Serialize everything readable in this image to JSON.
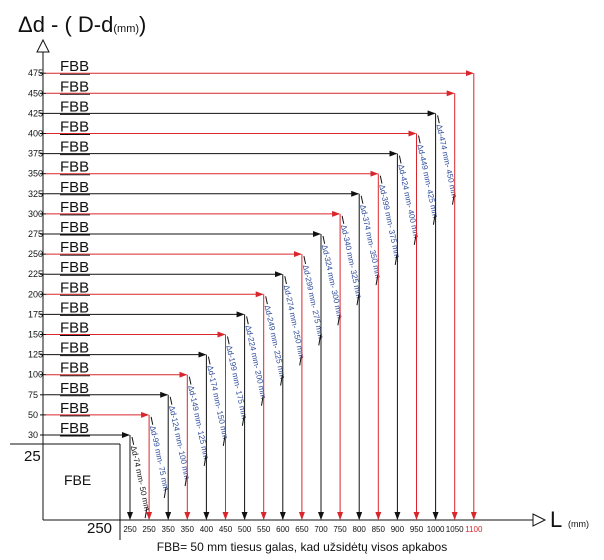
{
  "title": {
    "main": "Δd - ( D-d",
    "unit": "(mm)",
    "close": ")"
  },
  "x_axis": {
    "label": "L",
    "unit": "(mm)"
  },
  "corner": {
    "y_value": "25",
    "x_value": "250",
    "box_label": "FBE"
  },
  "fbb_label": "FBB",
  "footnote": "FBB= 50 mm tiesus galas, kad užsidėtų visos apkabos",
  "colors": {
    "black_line": "#111111",
    "red_line": "#d9262c",
    "blue_text": "#2b4a9b",
    "red_text": "#d9262c"
  },
  "rows": [
    {
      "y": "30",
      "x": "250",
      "color": "black",
      "annotation": "Δd-74 mm- 50 mm",
      "annotation_color": "black"
    },
    {
      "y": "50",
      "x": "250",
      "color": "red",
      "annotation": "Δd-99 mm- 75 mm",
      "annotation_color": "blue"
    },
    {
      "y": "75",
      "x": "350",
      "color": "black",
      "annotation": "Δd-124 mm- 100 mm",
      "annotation_color": "blue"
    },
    {
      "y": "100",
      "x": "350",
      "color": "red",
      "annotation": "Δd-149 mm- 125 mm",
      "annotation_color": "blue"
    },
    {
      "y": "125",
      "x": "400",
      "color": "black",
      "annotation": "Δd-174 mm- 150 mm",
      "annotation_color": "blue"
    },
    {
      "y": "150",
      "x": "450",
      "color": "red",
      "annotation": "Δd-199 mm- 175 mm",
      "annotation_color": "blue"
    },
    {
      "y": "175",
      "x": "500",
      "color": "black",
      "annotation": "Δd-224 mm- 200 mm",
      "annotation_color": "blue"
    },
    {
      "y": "200",
      "x": "550",
      "color": "red",
      "annotation": "Δd-249 mm- 225 mm",
      "annotation_color": "blue"
    },
    {
      "y": "225",
      "x": "600",
      "color": "black",
      "annotation": "Δd-274 mm- 250 mm",
      "annotation_color": "blue"
    },
    {
      "y": "250",
      "x": "650",
      "color": "red",
      "annotation": "Δd-299 mm- 275 mm",
      "annotation_color": "blue"
    },
    {
      "y": "275",
      "x": "700",
      "color": "black",
      "annotation": "Δd-324 mm- 300 mm",
      "annotation_color": "blue"
    },
    {
      "y": "300",
      "x": "750",
      "color": "red",
      "annotation": "Δd-340 mm- 325 mm",
      "annotation_color": "blue"
    },
    {
      "y": "325",
      "x": "800",
      "color": "black",
      "annotation": "Δd-374 mm- 350 mm",
      "annotation_color": "blue"
    },
    {
      "y": "350",
      "x": "850",
      "color": "red",
      "annotation": "Δd-399 mm- 375 mm",
      "annotation_color": "blue"
    },
    {
      "y": "375",
      "x": "900",
      "color": "black",
      "annotation": "Δd-424 mm- 400 mm",
      "annotation_color": "blue"
    },
    {
      "y": "400",
      "x": "950",
      "color": "red",
      "annotation": "Δd-449 mm- 425 mm",
      "annotation_color": "blue"
    },
    {
      "y": "425",
      "x": "1000",
      "color": "black",
      "annotation": "Δd-474 mm- 450 mm",
      "annotation_color": "blue"
    },
    {
      "y": "450",
      "x": "1050",
      "color": "red",
      "annotation": "",
      "annotation_color": "black"
    },
    {
      "y": "475",
      "x": "1100",
      "color": "red",
      "annotation": "",
      "annotation_color": "black"
    }
  ],
  "x_ticks": [
    {
      "label": "250",
      "color": "black"
    },
    {
      "label": "250",
      "color": "black"
    },
    {
      "label": "350",
      "color": "black"
    },
    {
      "label": "350",
      "color": "black"
    },
    {
      "label": "400",
      "color": "black"
    },
    {
      "label": "450",
      "color": "black"
    },
    {
      "label": "500",
      "color": "black"
    },
    {
      "label": "550",
      "color": "black"
    },
    {
      "label": "600",
      "color": "black"
    },
    {
      "label": "650",
      "color": "black"
    },
    {
      "label": "700",
      "color": "black"
    },
    {
      "label": "750",
      "color": "black"
    },
    {
      "label": "800",
      "color": "black"
    },
    {
      "label": "850",
      "color": "black"
    },
    {
      "label": "900",
      "color": "black"
    },
    {
      "label": "950",
      "color": "black"
    },
    {
      "label": "1000",
      "color": "black"
    },
    {
      "label": "1050",
      "color": "black"
    },
    {
      "label": "1100",
      "color": "red"
    }
  ]
}
